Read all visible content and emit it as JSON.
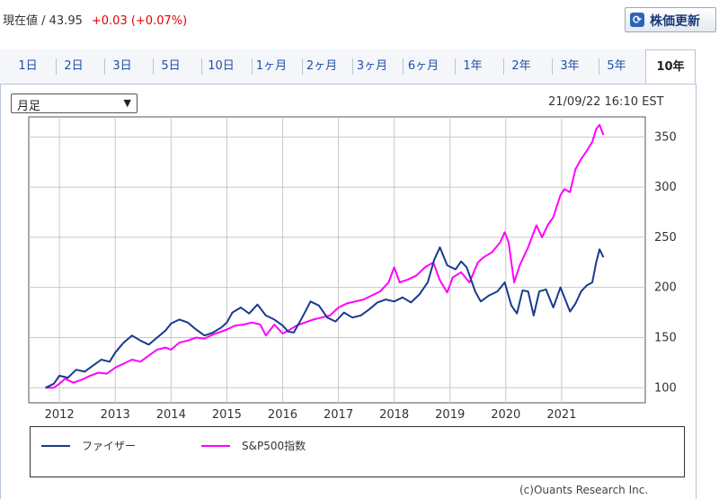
{
  "header": {
    "price_label": "現在値 / 43.95",
    "change_label": "+0.03 (+0.07%)",
    "refresh_label": "株価更新",
    "refresh_icon": "refresh-icon"
  },
  "tabs": [
    {
      "label": "1日"
    },
    {
      "label": "2日"
    },
    {
      "label": "3日"
    },
    {
      "label": "5日"
    },
    {
      "label": "10日"
    },
    {
      "label": "1ヶ月"
    },
    {
      "label": "2ヶ月"
    },
    {
      "label": "3ヶ月"
    },
    {
      "label": "6ヶ月"
    },
    {
      "label": "1年"
    },
    {
      "label": "2年"
    },
    {
      "label": "3年"
    },
    {
      "label": "5年"
    },
    {
      "label": "10年",
      "active": true
    }
  ],
  "controls": {
    "period_select": "月足",
    "timestamp": "21/09/22 16:10 EST"
  },
  "credit": "(c)Ouants Research Inc.",
  "chart_data": {
    "type": "line",
    "xlabel": "",
    "ylabel": "",
    "xlim": [
      2011.45,
      2022.5
    ],
    "ylim": [
      85,
      370
    ],
    "x_ticks": [
      2012,
      2013,
      2014,
      2015,
      2016,
      2017,
      2018,
      2019,
      2020,
      2021
    ],
    "y_ticks": [
      100,
      150,
      200,
      250,
      300,
      350
    ],
    "y_axis_side": "right",
    "grid": true,
    "legend_position": "bottom",
    "series": [
      {
        "name": "ファイザー",
        "color": "#1a3a8f",
        "points": [
          [
            2011.75,
            100
          ],
          [
            2011.9,
            104
          ],
          [
            2012.0,
            112
          ],
          [
            2012.15,
            110
          ],
          [
            2012.3,
            118
          ],
          [
            2012.45,
            116
          ],
          [
            2012.6,
            122
          ],
          [
            2012.75,
            128
          ],
          [
            2012.9,
            126
          ],
          [
            2013.0,
            135
          ],
          [
            2013.15,
            145
          ],
          [
            2013.3,
            152
          ],
          [
            2013.45,
            147
          ],
          [
            2013.6,
            143
          ],
          [
            2013.75,
            150
          ],
          [
            2013.9,
            157
          ],
          [
            2014.0,
            164
          ],
          [
            2014.15,
            168
          ],
          [
            2014.3,
            165
          ],
          [
            2014.45,
            158
          ],
          [
            2014.6,
            152
          ],
          [
            2014.75,
            155
          ],
          [
            2014.9,
            160
          ],
          [
            2015.0,
            165
          ],
          [
            2015.1,
            175
          ],
          [
            2015.25,
            180
          ],
          [
            2015.4,
            174
          ],
          [
            2015.55,
            183
          ],
          [
            2015.7,
            172
          ],
          [
            2015.85,
            168
          ],
          [
            2016.0,
            162
          ],
          [
            2016.1,
            156
          ],
          [
            2016.2,
            155
          ],
          [
            2016.35,
            170
          ],
          [
            2016.5,
            186
          ],
          [
            2016.65,
            182
          ],
          [
            2016.8,
            170
          ],
          [
            2016.95,
            166
          ],
          [
            2017.1,
            175
          ],
          [
            2017.25,
            170
          ],
          [
            2017.4,
            172
          ],
          [
            2017.55,
            178
          ],
          [
            2017.7,
            185
          ],
          [
            2017.85,
            188
          ],
          [
            2018.0,
            186
          ],
          [
            2018.15,
            190
          ],
          [
            2018.3,
            185
          ],
          [
            2018.45,
            193
          ],
          [
            2018.6,
            205
          ],
          [
            2018.72,
            228
          ],
          [
            2018.82,
            240
          ],
          [
            2018.95,
            222
          ],
          [
            2019.1,
            218
          ],
          [
            2019.2,
            226
          ],
          [
            2019.3,
            220
          ],
          [
            2019.45,
            196
          ],
          [
            2019.55,
            186
          ],
          [
            2019.7,
            192
          ],
          [
            2019.85,
            196
          ],
          [
            2019.98,
            205
          ],
          [
            2020.1,
            182
          ],
          [
            2020.2,
            174
          ],
          [
            2020.3,
            197
          ],
          [
            2020.4,
            196
          ],
          [
            2020.5,
            172
          ],
          [
            2020.6,
            196
          ],
          [
            2020.72,
            198
          ],
          [
            2020.85,
            180
          ],
          [
            2020.98,
            200
          ],
          [
            2021.05,
            190
          ],
          [
            2021.15,
            176
          ],
          [
            2021.25,
            184
          ],
          [
            2021.35,
            196
          ],
          [
            2021.45,
            202
          ],
          [
            2021.55,
            205
          ],
          [
            2021.62,
            225
          ],
          [
            2021.68,
            238
          ],
          [
            2021.75,
            230
          ]
        ]
      },
      {
        "name": "S&P500指数",
        "color": "#ff00ff",
        "points": [
          [
            2011.75,
            100
          ],
          [
            2011.9,
            100
          ],
          [
            2012.0,
            104
          ],
          [
            2012.1,
            109
          ],
          [
            2012.25,
            105
          ],
          [
            2012.4,
            108
          ],
          [
            2012.55,
            112
          ],
          [
            2012.7,
            115
          ],
          [
            2012.85,
            114
          ],
          [
            2013.0,
            120
          ],
          [
            2013.15,
            124
          ],
          [
            2013.3,
            128
          ],
          [
            2013.45,
            126
          ],
          [
            2013.6,
            132
          ],
          [
            2013.75,
            138
          ],
          [
            2013.9,
            140
          ],
          [
            2014.0,
            138
          ],
          [
            2014.15,
            145
          ],
          [
            2014.3,
            147
          ],
          [
            2014.45,
            150
          ],
          [
            2014.6,
            149
          ],
          [
            2014.75,
            153
          ],
          [
            2014.9,
            156
          ],
          [
            2015.0,
            158
          ],
          [
            2015.15,
            162
          ],
          [
            2015.3,
            163
          ],
          [
            2015.45,
            165
          ],
          [
            2015.6,
            163
          ],
          [
            2015.7,
            152
          ],
          [
            2015.85,
            163
          ],
          [
            2016.0,
            154
          ],
          [
            2016.1,
            157
          ],
          [
            2016.25,
            162
          ],
          [
            2016.4,
            165
          ],
          [
            2016.55,
            168
          ],
          [
            2016.7,
            170
          ],
          [
            2016.85,
            172
          ],
          [
            2017.0,
            180
          ],
          [
            2017.15,
            184
          ],
          [
            2017.3,
            186
          ],
          [
            2017.45,
            188
          ],
          [
            2017.6,
            192
          ],
          [
            2017.75,
            196
          ],
          [
            2017.9,
            205
          ],
          [
            2018.0,
            220
          ],
          [
            2018.1,
            205
          ],
          [
            2018.25,
            208
          ],
          [
            2018.4,
            212
          ],
          [
            2018.55,
            220
          ],
          [
            2018.7,
            225
          ],
          [
            2018.82,
            207
          ],
          [
            2018.95,
            195
          ],
          [
            2019.05,
            210
          ],
          [
            2019.2,
            215
          ],
          [
            2019.35,
            205
          ],
          [
            2019.5,
            225
          ],
          [
            2019.6,
            230
          ],
          [
            2019.75,
            235
          ],
          [
            2019.9,
            245
          ],
          [
            2019.98,
            255
          ],
          [
            2020.05,
            245
          ],
          [
            2020.15,
            205
          ],
          [
            2020.25,
            222
          ],
          [
            2020.4,
            240
          ],
          [
            2020.55,
            262
          ],
          [
            2020.65,
            250
          ],
          [
            2020.75,
            262
          ],
          [
            2020.85,
            270
          ],
          [
            2020.98,
            292
          ],
          [
            2021.05,
            298
          ],
          [
            2021.15,
            295
          ],
          [
            2021.25,
            318
          ],
          [
            2021.35,
            328
          ],
          [
            2021.45,
            336
          ],
          [
            2021.55,
            345
          ],
          [
            2021.62,
            358
          ],
          [
            2021.68,
            362
          ],
          [
            2021.75,
            352
          ]
        ]
      }
    ]
  }
}
